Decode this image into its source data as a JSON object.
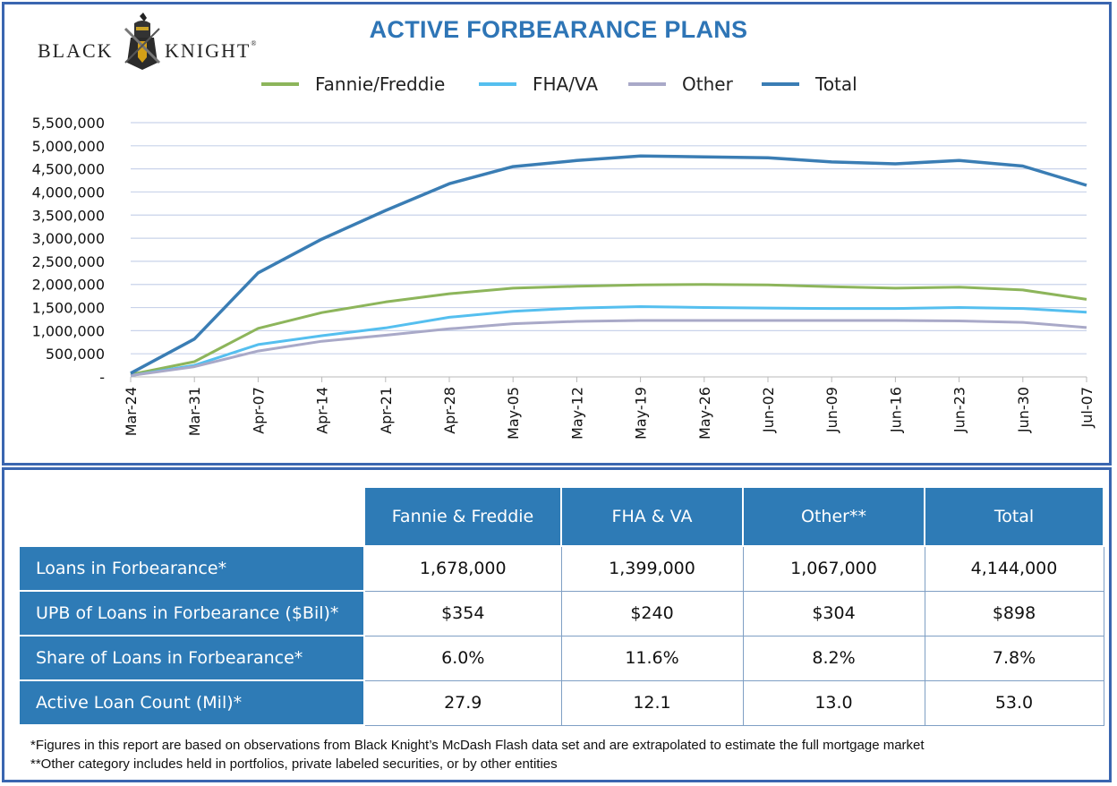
{
  "logo": {
    "word_left": "BLACK",
    "word_right": "KNIGHT",
    "mark": "®"
  },
  "chart_data": {
    "type": "line",
    "title": "ACTIVE FORBEARANCE PLANS",
    "xlabel": "",
    "ylabel": "",
    "ylim": [
      0,
      5500000
    ],
    "y_ticks": [
      "-",
      "500,000",
      "1,000,000",
      "1,500,000",
      "2,000,000",
      "2,500,000",
      "3,000,000",
      "3,500,000",
      "4,000,000",
      "4,500,000",
      "5,000,000",
      "5,500,000"
    ],
    "x_ticks": [
      "Mar-24",
      "Mar-31",
      "Apr-07",
      "Apr-14",
      "Apr-21",
      "Apr-28",
      "May-05",
      "May-12",
      "May-19",
      "May-26",
      "Jun-02",
      "Jun-09",
      "Jun-16",
      "Jun-23",
      "Jun-30",
      "Jul-07"
    ],
    "grid": true,
    "legend_position": "top",
    "x_days": [
      0,
      7,
      14,
      21,
      28,
      35,
      42,
      49,
      56,
      63,
      70,
      77,
      84,
      91,
      98,
      105
    ],
    "series": [
      {
        "name": "Fannie/Freddie",
        "color": "#8db55b",
        "values": [
          50000,
          330000,
          1050000,
          1390000,
          1620000,
          1800000,
          1920000,
          1960000,
          1990000,
          2000000,
          1990000,
          1950000,
          1920000,
          1940000,
          1880000,
          1678000
        ]
      },
      {
        "name": "FHA/VA",
        "color": "#55bfef",
        "values": [
          30000,
          250000,
          700000,
          890000,
          1060000,
          1290000,
          1420000,
          1490000,
          1520000,
          1500000,
          1490000,
          1480000,
          1480000,
          1500000,
          1480000,
          1399000
        ]
      },
      {
        "name": "Other",
        "color": "#a9a9c8",
        "values": [
          30000,
          220000,
          560000,
          770000,
          900000,
          1040000,
          1150000,
          1200000,
          1220000,
          1220000,
          1220000,
          1220000,
          1220000,
          1210000,
          1180000,
          1067000
        ]
      },
      {
        "name": "Total",
        "color": "#3a7db4",
        "values": [
          80000,
          820000,
          2250000,
          2980000,
          3600000,
          4180000,
          4550000,
          4680000,
          4780000,
          4760000,
          4740000,
          4650000,
          4610000,
          4680000,
          4560000,
          4144000
        ]
      }
    ]
  },
  "table": {
    "columns": [
      "Fannie & Freddie",
      "FHA & VA",
      "Other**",
      "Total"
    ],
    "rows": [
      {
        "label": "Loans in Forbearance*",
        "values": [
          "1,678,000",
          "1,399,000",
          "1,067,000",
          "4,144,000"
        ]
      },
      {
        "label": "UPB of Loans in Forbearance ($Bil)*",
        "values": [
          "$354",
          "$240",
          "$304",
          "$898"
        ]
      },
      {
        "label": "Share of Loans in Forbearance*",
        "values": [
          "6.0%",
          "11.6%",
          "8.2%",
          "7.8%"
        ]
      },
      {
        "label": "Active Loan Count  (Mil)*",
        "values": [
          "27.9",
          "12.1",
          "13.0",
          "53.0"
        ]
      }
    ]
  },
  "footnotes": [
    "*Figures in this report are based on observations from Black Knight’s McDash Flash data set and are extrapolated to estimate the full mortgage market",
    "**Other category includes held in portfolios, private labeled securities, or by other entities"
  ]
}
